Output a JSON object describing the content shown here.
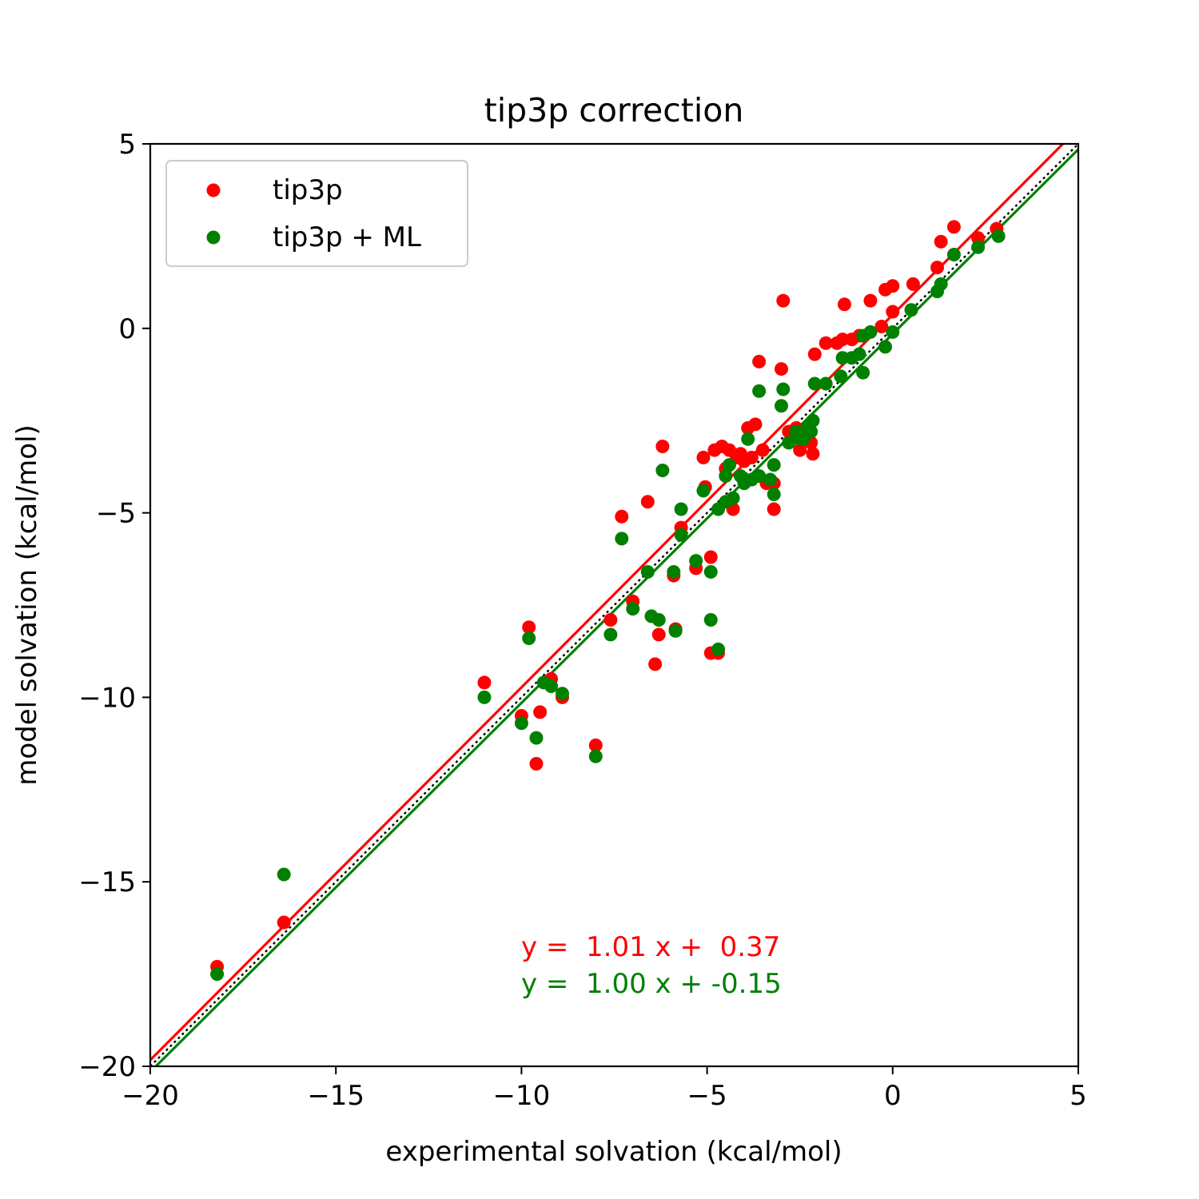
{
  "chart_data": {
    "type": "scatter",
    "title": "tip3p correction",
    "xlabel": "experimental solvation (kcal/mol)",
    "ylabel": "model solvation (kcal/mol)",
    "xlim": [
      -20,
      5
    ],
    "ylim": [
      -20,
      5
    ],
    "xticks": [
      -20,
      -15,
      -10,
      -5,
      0,
      5
    ],
    "yticks": [
      -20,
      -15,
      -10,
      -5,
      0,
      5
    ],
    "xtick_labels": [
      "−20",
      "−15",
      "−10",
      "−5",
      "0",
      "5"
    ],
    "ytick_labels": [
      "−20",
      "−15",
      "−10",
      "−5",
      "0",
      "5"
    ],
    "grid": false,
    "legend_position": "top-left",
    "identity_line": {
      "style": "dotted",
      "color": "#000000"
    },
    "series": [
      {
        "name": "tip3p",
        "color": "#ff0000",
        "fit": {
          "slope": 1.01,
          "intercept": 0.37,
          "label": "y =  1.01 x +  0.37"
        },
        "points": [
          [
            -18.2,
            -17.3
          ],
          [
            -16.4,
            -16.1
          ],
          [
            -11.0,
            -9.6
          ],
          [
            -10.0,
            -10.5
          ],
          [
            -9.8,
            -8.1
          ],
          [
            -9.6,
            -11.8
          ],
          [
            -9.5,
            -10.4
          ],
          [
            -9.2,
            -9.5
          ],
          [
            -8.9,
            -10.0
          ],
          [
            -8.0,
            -11.3
          ],
          [
            -7.6,
            -7.9
          ],
          [
            -7.3,
            -5.1
          ],
          [
            -7.0,
            -7.4
          ],
          [
            -6.6,
            -4.7
          ],
          [
            -6.4,
            -9.1
          ],
          [
            -6.3,
            -8.3
          ],
          [
            -6.2,
            -3.2
          ],
          [
            -5.9,
            -6.7
          ],
          [
            -5.85,
            -8.15
          ],
          [
            -5.7,
            -5.4
          ],
          [
            -5.3,
            -6.5
          ],
          [
            -5.1,
            -3.5
          ],
          [
            -5.05,
            -4.3
          ],
          [
            -4.9,
            -6.2
          ],
          [
            -4.9,
            -8.8
          ],
          [
            -4.8,
            -3.3
          ],
          [
            -4.7,
            -8.8
          ],
          [
            -4.6,
            -3.2
          ],
          [
            -4.5,
            -3.8
          ],
          [
            -4.4,
            -3.3
          ],
          [
            -4.3,
            -4.9
          ],
          [
            -4.2,
            -3.5
          ],
          [
            -4.1,
            -3.4
          ],
          [
            -4.0,
            -3.6
          ],
          [
            -3.9,
            -2.7
          ],
          [
            -3.8,
            -3.5
          ],
          [
            -3.7,
            -2.6
          ],
          [
            -3.6,
            -0.9
          ],
          [
            -3.5,
            -3.3
          ],
          [
            -3.4,
            -4.2
          ],
          [
            -3.2,
            -4.2
          ],
          [
            -3.2,
            -4.9
          ],
          [
            -3.0,
            -1.1
          ],
          [
            -2.95,
            0.75
          ],
          [
            -2.8,
            -2.8
          ],
          [
            -2.6,
            -2.7
          ],
          [
            -2.5,
            -3.3
          ],
          [
            -2.4,
            -2.9
          ],
          [
            -2.2,
            -3.1
          ],
          [
            -2.15,
            -3.4
          ],
          [
            -2.1,
            -0.7
          ],
          [
            -1.8,
            -0.4
          ],
          [
            -1.5,
            -0.4
          ],
          [
            -1.35,
            -0.3
          ],
          [
            -1.3,
            0.65
          ],
          [
            -1.1,
            -0.3
          ],
          [
            -0.9,
            -0.2
          ],
          [
            -0.6,
            0.75
          ],
          [
            -0.3,
            0.05
          ],
          [
            -0.2,
            1.05
          ],
          [
            0.0,
            1.15
          ],
          [
            0.0,
            0.45
          ],
          [
            0.55,
            1.2
          ],
          [
            1.2,
            1.65
          ],
          [
            1.3,
            2.35
          ],
          [
            1.65,
            2.75
          ],
          [
            2.3,
            2.45
          ],
          [
            2.8,
            2.7
          ]
        ]
      },
      {
        "name": "tip3p + ML",
        "color": "#008000",
        "fit": {
          "slope": 1.0,
          "intercept": -0.15,
          "label": "y =  1.00 x + -0.15"
        },
        "points": [
          [
            -18.2,
            -17.5
          ],
          [
            -16.4,
            -14.8
          ],
          [
            -11.0,
            -10.0
          ],
          [
            -10.0,
            -10.7
          ],
          [
            -9.8,
            -8.4
          ],
          [
            -9.6,
            -11.1
          ],
          [
            -9.4,
            -9.6
          ],
          [
            -9.2,
            -9.7
          ],
          [
            -8.9,
            -9.9
          ],
          [
            -8.0,
            -11.6
          ],
          [
            -7.6,
            -8.3
          ],
          [
            -7.3,
            -5.7
          ],
          [
            -7.0,
            -7.6
          ],
          [
            -6.6,
            -6.6
          ],
          [
            -6.5,
            -7.8
          ],
          [
            -6.3,
            -7.9
          ],
          [
            -6.2,
            -3.85
          ],
          [
            -5.9,
            -6.6
          ],
          [
            -5.85,
            -8.2
          ],
          [
            -5.7,
            -4.9
          ],
          [
            -5.7,
            -5.6
          ],
          [
            -5.3,
            -6.3
          ],
          [
            -5.1,
            -4.4
          ],
          [
            -4.9,
            -6.6
          ],
          [
            -4.9,
            -7.9
          ],
          [
            -4.7,
            -4.9
          ],
          [
            -4.7,
            -8.7
          ],
          [
            -4.5,
            -4.0
          ],
          [
            -4.5,
            -4.7
          ],
          [
            -4.4,
            -3.7
          ],
          [
            -4.3,
            -4.6
          ],
          [
            -4.1,
            -4.0
          ],
          [
            -4.0,
            -4.2
          ],
          [
            -3.9,
            -3.0
          ],
          [
            -3.8,
            -4.1
          ],
          [
            -3.6,
            -1.7
          ],
          [
            -3.6,
            -4.0
          ],
          [
            -3.3,
            -4.1
          ],
          [
            -3.2,
            -3.7
          ],
          [
            -3.2,
            -4.5
          ],
          [
            -3.0,
            -2.1
          ],
          [
            -2.95,
            -1.65
          ],
          [
            -2.8,
            -3.1
          ],
          [
            -2.6,
            -2.8
          ],
          [
            -2.5,
            -3.0
          ],
          [
            -2.4,
            -3.0
          ],
          [
            -2.3,
            -2.7
          ],
          [
            -2.2,
            -2.8
          ],
          [
            -2.15,
            -2.5
          ],
          [
            -2.1,
            -1.5
          ],
          [
            -1.8,
            -1.5
          ],
          [
            -1.4,
            -1.3
          ],
          [
            -1.35,
            -0.8
          ],
          [
            -1.1,
            -0.8
          ],
          [
            -0.9,
            -0.7
          ],
          [
            -0.8,
            -1.2
          ],
          [
            -0.8,
            -0.2
          ],
          [
            -0.6,
            -0.1
          ],
          [
            -0.2,
            -0.5
          ],
          [
            0.0,
            -0.1
          ],
          [
            0.5,
            0.5
          ],
          [
            1.2,
            1.0
          ],
          [
            1.3,
            1.2
          ],
          [
            1.65,
            2.0
          ],
          [
            2.3,
            2.2
          ],
          [
            2.85,
            2.5
          ]
        ]
      }
    ]
  }
}
